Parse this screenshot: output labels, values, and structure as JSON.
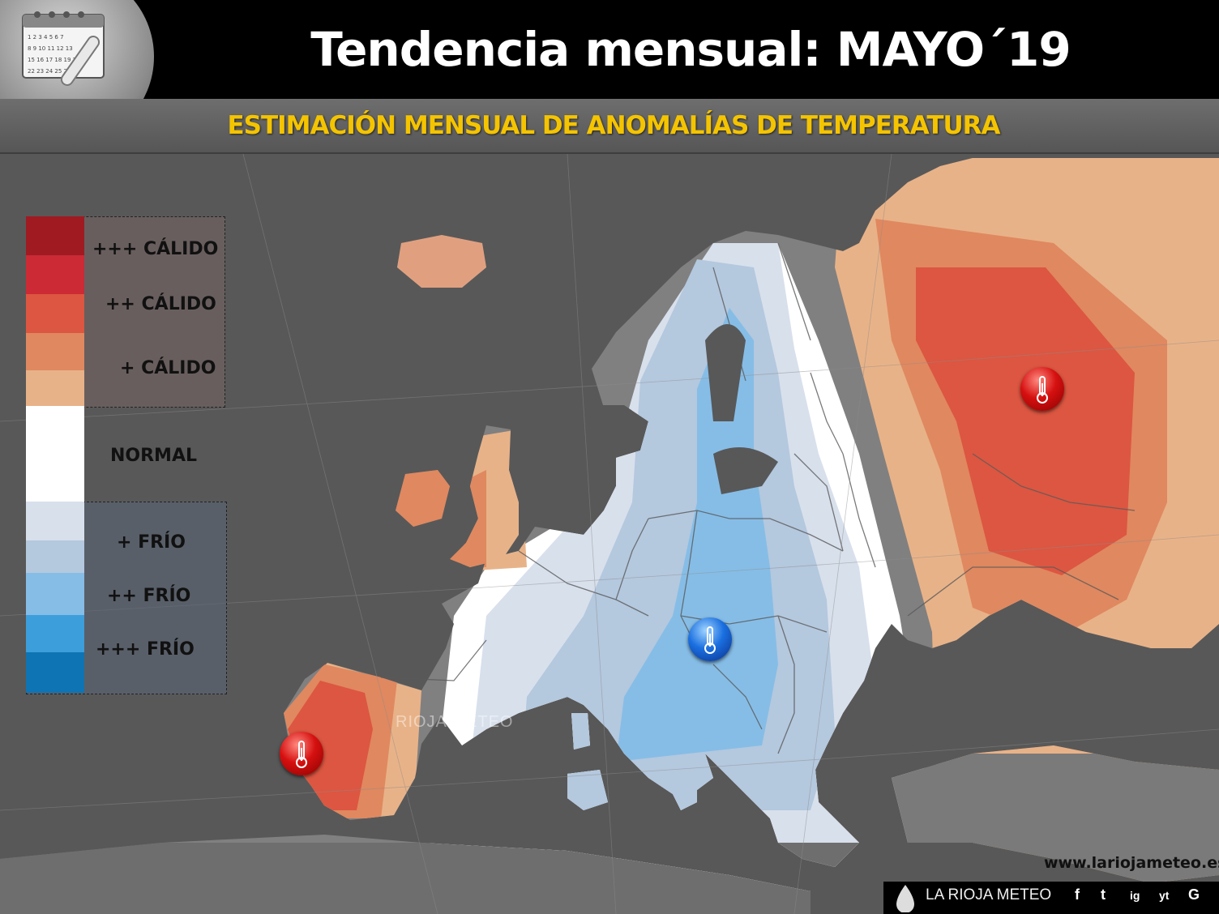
{
  "header": {
    "title": "Tendencia mensual: MAYO´19",
    "subtitle": "ESTIMACIÓN MENSUAL DE ANOMALÍAS DE TEMPERATURA"
  },
  "calendar_icon_text": "1 2 3 4 5 6 7 8 9 10 11 12 13 14 15 16 17 18 19 20 21 22 23 24 25 26 27 28 29",
  "legend": {
    "warm3": "+++ CÁLIDO",
    "warm2": "++ CÁLIDO",
    "warm1": "+ CÁLIDO",
    "normal": "NORMAL",
    "cold1": "+ FRÍO",
    "cold2": "++ FRÍO",
    "cold3": "+++ FRÍO",
    "colors": [
      "#a01a22",
      "#cc2a35",
      "#dc5641",
      "#e0885f",
      "#e8b288",
      "#ffffff",
      "#d8e0ec",
      "#b4c8de",
      "#86bde6",
      "#3c9fdc",
      "#0f74b4"
    ]
  },
  "markers": {
    "warm_icon": "thermometer-hot-icon",
    "cold_icon": "thermometer-cold-icon"
  },
  "watermark": "RIOJA METEO",
  "footer": {
    "website": "www.lariojameteo.es",
    "brand": "LA RIOJA METEO",
    "social": [
      "f",
      "t",
      "ig",
      "yt",
      "G"
    ]
  }
}
